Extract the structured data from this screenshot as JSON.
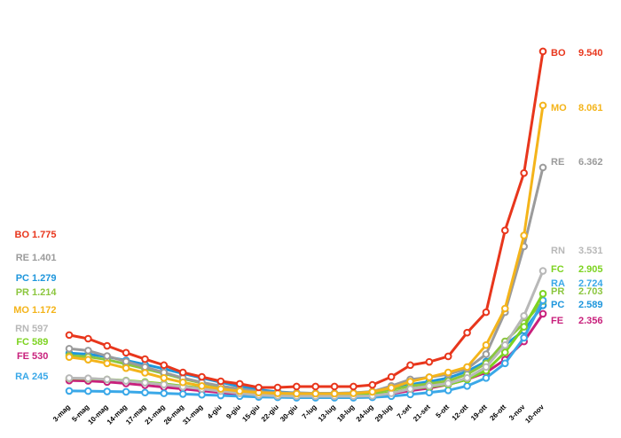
{
  "chart_data": {
    "type": "line",
    "categories": [
      "3-mag",
      "5-mag",
      "10-mag",
      "14-mag",
      "17-mag",
      "21-mag",
      "26-mag",
      "31-mag",
      "4-giu",
      "9-giu",
      "15-giu",
      "22-giu",
      "30-giu",
      "7-lug",
      "13-lug",
      "18-lug",
      "24-lug",
      "29-lug",
      "7-set",
      "21-set",
      "5-ott",
      "12-ott",
      "19-ott",
      "26-ott",
      "3-nov",
      "10-nov"
    ],
    "ylim": [
      0,
      10000
    ],
    "series": [
      {
        "name": "BO",
        "color": "#e8361c",
        "values": [
          1775,
          1675,
          1480,
          1290,
          1115,
          950,
          750,
          630,
          510,
          440,
          340,
          340,
          365,
          365,
          365,
          365,
          410,
          630,
          950,
          1040,
          1190,
          1840,
          2400,
          4640,
          6210,
          9540
        ],
        "value_labels": [
          "1.775",
          null,
          null,
          null,
          null,
          null,
          null,
          null,
          null,
          null,
          null,
          null,
          null,
          null,
          null,
          null,
          null,
          null,
          null,
          null,
          null,
          null,
          null,
          null,
          null,
          "9.540"
        ]
      },
      {
        "name": "MO",
        "color": "#f4b41a",
        "values": [
          1172,
          1100,
          1000,
          870,
          740,
          600,
          480,
          380,
          300,
          240,
          200,
          180,
          170,
          170,
          170,
          180,
          220,
          330,
          500,
          620,
          750,
          900,
          1500,
          2500,
          4500,
          8061
        ],
        "value_labels": [
          "1.172",
          null,
          null,
          null,
          null,
          null,
          null,
          null,
          null,
          null,
          null,
          null,
          null,
          null,
          null,
          null,
          null,
          null,
          null,
          null,
          null,
          null,
          null,
          null,
          null,
          "8.061"
        ]
      },
      {
        "name": "RE",
        "color": "#9b9b9b",
        "values": [
          1401,
          1350,
          1200,
          1050,
          900,
          750,
          600,
          480,
          380,
          300,
          230,
          200,
          190,
          180,
          180,
          190,
          230,
          380,
          560,
          620,
          700,
          850,
          1250,
          2400,
          4200,
          6362
        ],
        "value_labels": [
          "1.401",
          null,
          null,
          null,
          null,
          null,
          null,
          null,
          null,
          null,
          null,
          null,
          null,
          null,
          null,
          null,
          null,
          null,
          null,
          null,
          null,
          null,
          null,
          null,
          null,
          "6.362"
        ]
      },
      {
        "name": "RN",
        "color": "#b8b8b8",
        "values": [
          597,
          590,
          560,
          520,
          470,
          420,
          360,
          300,
          240,
          180,
          130,
          110,
          100,
          100,
          100,
          100,
          110,
          180,
          300,
          380,
          450,
          600,
          900,
          1500,
          2300,
          3531
        ],
        "value_labels": [
          "597",
          null,
          null,
          null,
          null,
          null,
          null,
          null,
          null,
          null,
          null,
          null,
          null,
          null,
          null,
          null,
          null,
          null,
          null,
          null,
          null,
          null,
          null,
          null,
          null,
          "3.531"
        ]
      },
      {
        "name": "FC",
        "color": "#7dd321",
        "values": [
          589,
          580,
          560,
          530,
          490,
          440,
          380,
          320,
          260,
          200,
          150,
          120,
          110,
          110,
          110,
          120,
          140,
          200,
          300,
          360,
          420,
          560,
          800,
          1300,
          2000,
          2905
        ],
        "value_labels": [
          "589",
          null,
          null,
          null,
          null,
          null,
          null,
          null,
          null,
          null,
          null,
          null,
          null,
          null,
          null,
          null,
          null,
          null,
          null,
          null,
          null,
          null,
          null,
          null,
          null,
          "2.905"
        ]
      },
      {
        "name": "RA",
        "color": "#3aa8e8",
        "values": [
          245,
          240,
          230,
          220,
          200,
          180,
          160,
          140,
          120,
          100,
          80,
          70,
          60,
          60,
          60,
          60,
          70,
          100,
          150,
          200,
          260,
          380,
          600,
          1000,
          1700,
          2724
        ],
        "value_labels": [
          "245",
          null,
          null,
          null,
          null,
          null,
          null,
          null,
          null,
          null,
          null,
          null,
          null,
          null,
          null,
          null,
          null,
          null,
          null,
          null,
          null,
          null,
          null,
          null,
          null,
          "2.724"
        ]
      },
      {
        "name": "PR",
        "color": "#8cc63f",
        "values": [
          1214,
          1180,
          1100,
          980,
          850,
          720,
          580,
          460,
          360,
          280,
          220,
          190,
          170,
          160,
          160,
          170,
          200,
          280,
          380,
          440,
          520,
          700,
          1000,
          1600,
          2100,
          2703
        ],
        "value_labels": [
          "1.214",
          null,
          null,
          null,
          null,
          null,
          null,
          null,
          null,
          null,
          null,
          null,
          null,
          null,
          null,
          null,
          null,
          null,
          null,
          null,
          null,
          null,
          null,
          null,
          null,
          "2.703"
        ]
      },
      {
        "name": "PC",
        "color": "#1e96dc",
        "values": [
          1279,
          1250,
          1180,
          1080,
          970,
          850,
          720,
          600,
          480,
          370,
          280,
          220,
          190,
          180,
          180,
          190,
          220,
          300,
          420,
          500,
          600,
          780,
          1050,
          1500,
          1900,
          2589
        ],
        "value_labels": [
          "1.279",
          null,
          null,
          null,
          null,
          null,
          null,
          null,
          null,
          null,
          null,
          null,
          null,
          null,
          null,
          null,
          null,
          null,
          null,
          null,
          null,
          null,
          null,
          null,
          null,
          "2.589"
        ]
      },
      {
        "name": "FE",
        "color": "#c8207c",
        "values": [
          530,
          520,
          490,
          450,
          400,
          350,
          300,
          250,
          200,
          150,
          110,
          90,
          80,
          80,
          80,
          90,
          110,
          170,
          250,
          320,
          420,
          560,
          750,
          1100,
          1600,
          2356
        ],
        "value_labels": [
          "530",
          null,
          null,
          null,
          null,
          null,
          null,
          null,
          null,
          null,
          null,
          null,
          null,
          null,
          null,
          null,
          null,
          null,
          null,
          null,
          null,
          null,
          null,
          null,
          null,
          "2.356"
        ]
      }
    ]
  }
}
